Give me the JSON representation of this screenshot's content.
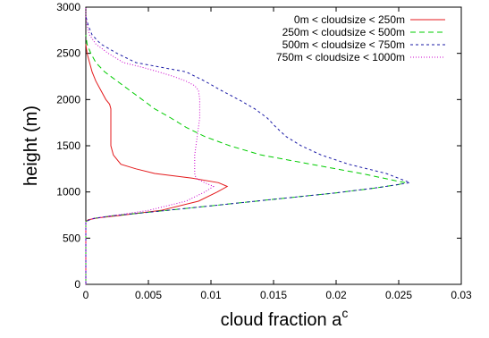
{
  "chart_data": {
    "type": "line",
    "title": "",
    "xlabel": "cloud fraction a",
    "xlabel_superscript": "c",
    "ylabel": "height (m)",
    "xlim": [
      0,
      0.03
    ],
    "ylim": [
      0,
      3000
    ],
    "x_ticks": [
      0,
      0.005,
      0.01,
      0.015,
      0.02,
      0.025,
      0.03
    ],
    "x_tick_labels": [
      "0",
      "0.005",
      "0.01",
      "0.015",
      "0.02",
      "0.025",
      "0.03"
    ],
    "y_ticks": [
      0,
      500,
      1000,
      1500,
      2000,
      2500,
      3000
    ],
    "y_tick_labels": [
      "0",
      "500",
      "1000",
      "1500",
      "2000",
      "2500",
      "3000"
    ],
    "grid": false,
    "legend_position": "top-right",
    "series": [
      {
        "name": "0m < cloudsize < 250m",
        "color": "#e41a1c",
        "dash": "solid",
        "points": [
          [
            0,
            0
          ],
          [
            0,
            680
          ],
          [
            0.0002,
            700
          ],
          [
            0.001,
            720
          ],
          [
            0.003,
            750
          ],
          [
            0.006,
            800
          ],
          [
            0.009,
            900
          ],
          [
            0.0105,
            1000
          ],
          [
            0.0113,
            1060
          ],
          [
            0.0106,
            1100
          ],
          [
            0.0085,
            1150
          ],
          [
            0.0055,
            1200
          ],
          [
            0.004,
            1250
          ],
          [
            0.0028,
            1300
          ],
          [
            0.0022,
            1400
          ],
          [
            0.002,
            1500
          ],
          [
            0.002,
            1600
          ],
          [
            0.002,
            1700
          ],
          [
            0.002,
            1800
          ],
          [
            0.002,
            1900
          ],
          [
            0.0019,
            1950
          ],
          [
            0.0016,
            2000
          ],
          [
            0.0012,
            2100
          ],
          [
            0.0008,
            2200
          ],
          [
            0.0005,
            2300
          ],
          [
            0.0003,
            2400
          ],
          [
            0.0001,
            2500
          ],
          [
            0,
            2600
          ]
        ]
      },
      {
        "name": "250m < cloudsize < 500m",
        "color": "#00cc00",
        "dash": "6,4",
        "points": [
          [
            0,
            0
          ],
          [
            0,
            680
          ],
          [
            0.0005,
            710
          ],
          [
            0.002,
            740
          ],
          [
            0.005,
            780
          ],
          [
            0.01,
            850
          ],
          [
            0.015,
            920
          ],
          [
            0.02,
            990
          ],
          [
            0.023,
            1040
          ],
          [
            0.025,
            1080
          ],
          [
            0.0255,
            1100
          ],
          [
            0.022,
            1200
          ],
          [
            0.018,
            1300
          ],
          [
            0.014,
            1400
          ],
          [
            0.0115,
            1500
          ],
          [
            0.0095,
            1600
          ],
          [
            0.008,
            1700
          ],
          [
            0.0068,
            1800
          ],
          [
            0.0055,
            1900
          ],
          [
            0.0045,
            2000
          ],
          [
            0.0035,
            2100
          ],
          [
            0.0025,
            2200
          ],
          [
            0.0015,
            2300
          ],
          [
            0.0008,
            2400
          ],
          [
            0.0004,
            2500
          ],
          [
            0.0001,
            2600
          ],
          [
            0,
            2700
          ]
        ]
      },
      {
        "name": "500m < cloudsize < 750m",
        "color": "#1a1aa6",
        "dash": "3,3",
        "points": [
          [
            0,
            0
          ],
          [
            0,
            680
          ],
          [
            0.0005,
            710
          ],
          [
            0.002,
            740
          ],
          [
            0.005,
            780
          ],
          [
            0.01,
            850
          ],
          [
            0.015,
            920
          ],
          [
            0.02,
            990
          ],
          [
            0.0235,
            1050
          ],
          [
            0.0259,
            1100
          ],
          [
            0.024,
            1200
          ],
          [
            0.021,
            1300
          ],
          [
            0.0188,
            1400
          ],
          [
            0.0172,
            1500
          ],
          [
            0.016,
            1600
          ],
          [
            0.0152,
            1700
          ],
          [
            0.0145,
            1800
          ],
          [
            0.0135,
            1900
          ],
          [
            0.0122,
            2000
          ],
          [
            0.0108,
            2100
          ],
          [
            0.0095,
            2200
          ],
          [
            0.008,
            2300
          ],
          [
            0.006,
            2350
          ],
          [
            0.004,
            2400
          ],
          [
            0.0025,
            2500
          ],
          [
            0.0012,
            2600
          ],
          [
            0.0005,
            2700
          ],
          [
            0.0002,
            2800
          ],
          [
            0,
            2900
          ]
        ]
      },
      {
        "name": "750m < cloudsize < 1000m",
        "color": "#cc00cc",
        "dash": "1,2",
        "points": [
          [
            0,
            0
          ],
          [
            0,
            680
          ],
          [
            0.0005,
            710
          ],
          [
            0.002,
            740
          ],
          [
            0.005,
            800
          ],
          [
            0.008,
            900
          ],
          [
            0.0095,
            1000
          ],
          [
            0.0102,
            1060
          ],
          [
            0.0095,
            1100
          ],
          [
            0.0088,
            1150
          ],
          [
            0.0087,
            1200
          ],
          [
            0.0087,
            1300
          ],
          [
            0.0087,
            1400
          ],
          [
            0.0088,
            1500
          ],
          [
            0.0089,
            1600
          ],
          [
            0.009,
            1700
          ],
          [
            0.0091,
            1800
          ],
          [
            0.0091,
            1900
          ],
          [
            0.0091,
            2000
          ],
          [
            0.009,
            2100
          ],
          [
            0.0087,
            2150
          ],
          [
            0.008,
            2200
          ],
          [
            0.007,
            2250
          ],
          [
            0.0058,
            2300
          ],
          [
            0.0045,
            2350
          ],
          [
            0.003,
            2400
          ],
          [
            0.0018,
            2500
          ],
          [
            0.0008,
            2600
          ],
          [
            0.0003,
            2700
          ],
          [
            0.0001,
            2800
          ],
          [
            0,
            2900
          ],
          [
            0,
            3000
          ]
        ]
      }
    ]
  }
}
